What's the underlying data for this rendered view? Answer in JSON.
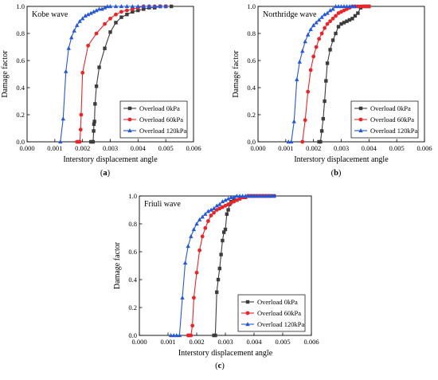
{
  "figure": {
    "panels": [
      "a",
      "b",
      "c"
    ]
  },
  "chart_data": [
    {
      "type": "line",
      "panel_label": "a",
      "title": "Kobe wave",
      "xlabel": "Interstory displacement angle",
      "ylabel": "Damage factor",
      "xlim": [
        0,
        0.006
      ],
      "ylim": [
        0,
        1.0
      ],
      "x_ticks": [
        "0.000",
        "0.001",
        "0.002",
        "0.003",
        "0.004",
        "0.005",
        "0.006"
      ],
      "y_ticks": [
        "0.0",
        "0.2",
        "0.4",
        "0.6",
        "0.8",
        "1.0"
      ],
      "legend_position": "bottom-right",
      "series": [
        {
          "name": "Overload 0kPa",
          "color": "#3c3c3c",
          "marker": "square",
          "x": [
            0.0023,
            0.00235,
            0.00238,
            0.0024,
            0.00241,
            0.00243,
            0.00245,
            0.0025,
            0.0026,
            0.0028,
            0.003,
            0.0032,
            0.0034,
            0.0036,
            0.0038,
            0.004,
            0.0042,
            0.0044,
            0.0046,
            0.0048,
            0.005,
            0.0052
          ],
          "y": [
            0.0,
            0.0,
            0.0,
            0.08,
            0.13,
            0.15,
            0.28,
            0.41,
            0.55,
            0.69,
            0.81,
            0.88,
            0.92,
            0.94,
            0.96,
            0.97,
            0.98,
            0.99,
            0.99,
            1.0,
            1.0,
            1.0
          ]
        },
        {
          "name": "Overload 60kPa",
          "color": "#e8262a",
          "marker": "circle",
          "x": [
            0.0018,
            0.00185,
            0.0019,
            0.00193,
            0.00195,
            0.002,
            0.0022,
            0.0025,
            0.0028,
            0.003,
            0.0032,
            0.0034,
            0.0036,
            0.0038,
            0.004,
            0.0042,
            0.0044,
            0.0046,
            0.0048,
            0.005
          ],
          "y": [
            0.0,
            0.0,
            0.0,
            0.09,
            0.2,
            0.51,
            0.71,
            0.8,
            0.87,
            0.91,
            0.94,
            0.96,
            0.97,
            0.98,
            0.99,
            1.0,
            1.0,
            1.0,
            1.0,
            1.0
          ]
        },
        {
          "name": "Overload 120kPa",
          "color": "#2458d6",
          "marker": "triangle",
          "x": [
            0.0012,
            0.0013,
            0.0014,
            0.0015,
            0.0016,
            0.0017,
            0.0018,
            0.0019,
            0.002,
            0.0021,
            0.0022,
            0.0023,
            0.0024,
            0.0025,
            0.0026,
            0.0027,
            0.0028,
            0.0029,
            0.003,
            0.0032,
            0.0034,
            0.0036,
            0.0038,
            0.004,
            0.0042,
            0.0044,
            0.0046,
            0.0048,
            0.005
          ],
          "y": [
            0.0,
            0.17,
            0.52,
            0.69,
            0.77,
            0.82,
            0.86,
            0.89,
            0.91,
            0.93,
            0.94,
            0.95,
            0.96,
            0.97,
            0.98,
            0.98,
            0.99,
            1.0,
            1.0,
            1.0,
            1.0,
            1.0,
            1.0,
            1.0,
            1.0,
            1.0,
            1.0,
            1.0,
            1.0
          ]
        }
      ]
    },
    {
      "type": "line",
      "panel_label": "b",
      "title": "Northridge wave",
      "xlabel": "Interstory displacement angle",
      "ylabel": "Damage factor",
      "xlim": [
        0,
        0.006
      ],
      "ylim": [
        0,
        1.0
      ],
      "x_ticks": [
        "0.000",
        "0.001",
        "0.002",
        "0.003",
        "0.004",
        "0.005",
        "0.006"
      ],
      "y_ticks": [
        "0.0",
        "0.2",
        "0.4",
        "0.6",
        "0.8",
        "1.0"
      ],
      "legend_position": "bottom-right",
      "series": [
        {
          "name": "Overload 0kPa",
          "color": "#3c3c3c",
          "marker": "square",
          "x": [
            0.0022,
            0.00225,
            0.0023,
            0.00235,
            0.0024,
            0.00245,
            0.0025,
            0.0026,
            0.0027,
            0.0028,
            0.0029,
            0.003,
            0.0031,
            0.0032,
            0.0033,
            0.0034,
            0.0035,
            0.0036,
            0.0037,
            0.0038,
            0.0039,
            0.004
          ],
          "y": [
            0.0,
            0.0,
            0.08,
            0.17,
            0.3,
            0.45,
            0.58,
            0.68,
            0.75,
            0.8,
            0.85,
            0.87,
            0.88,
            0.89,
            0.9,
            0.91,
            0.93,
            0.95,
            0.99,
            1.0,
            1.0,
            1.0
          ]
        },
        {
          "name": "Overload 60kPa",
          "color": "#e8262a",
          "marker": "circle",
          "x": [
            0.0016,
            0.0017,
            0.0018,
            0.0019,
            0.002,
            0.0021,
            0.0022,
            0.0023,
            0.0024,
            0.0025,
            0.0026,
            0.0027,
            0.0028,
            0.0029,
            0.003,
            0.0031,
            0.0032,
            0.0033,
            0.0034,
            0.0035,
            0.0036,
            0.0037,
            0.0038,
            0.0039,
            0.004
          ],
          "y": [
            0.0,
            0.16,
            0.37,
            0.53,
            0.63,
            0.7,
            0.76,
            0.8,
            0.84,
            0.87,
            0.89,
            0.91,
            0.93,
            0.95,
            0.96,
            0.97,
            0.98,
            0.99,
            1.0,
            1.0,
            1.0,
            1.0,
            1.0,
            1.0,
            1.0
          ]
        },
        {
          "name": "Overload 120kPa",
          "color": "#2458d6",
          "marker": "triangle",
          "x": [
            0.0011,
            0.0012,
            0.0013,
            0.0014,
            0.0015,
            0.0016,
            0.0017,
            0.0018,
            0.0019,
            0.002,
            0.0021,
            0.0022,
            0.0023,
            0.0024,
            0.0025,
            0.0026,
            0.0027,
            0.0028,
            0.0029,
            0.003,
            0.0031,
            0.0032,
            0.0033,
            0.0034,
            0.0035
          ],
          "y": [
            0.0,
            0.0,
            0.15,
            0.46,
            0.59,
            0.67,
            0.74,
            0.79,
            0.83,
            0.86,
            0.88,
            0.9,
            0.92,
            0.94,
            0.95,
            0.97,
            0.98,
            1.0,
            1.0,
            1.0,
            1.0,
            1.0,
            1.0,
            1.0,
            1.0
          ]
        }
      ]
    },
    {
      "type": "line",
      "panel_label": "c",
      "title": "Friuli wave",
      "xlabel": "Interstory displacement angle",
      "ylabel": "Damage factor",
      "xlim": [
        0,
        0.006
      ],
      "ylim": [
        0,
        1.0
      ],
      "x_ticks": [
        "0.000",
        "0.001",
        "0.002",
        "0.003",
        "0.004",
        "0.005",
        "0.006"
      ],
      "y_ticks": [
        "0.0",
        "0.2",
        "0.4",
        "0.6",
        "0.8",
        "1.0"
      ],
      "legend_position": "bottom-right",
      "series": [
        {
          "name": "Overload 0kPa",
          "color": "#3c3c3c",
          "marker": "square",
          "x": [
            0.0026,
            0.00265,
            0.0027,
            0.00275,
            0.0028,
            0.00285,
            0.0029,
            0.00295,
            0.003,
            0.00305,
            0.0031,
            0.00315,
            0.0032,
            0.0033,
            0.0034,
            0.0035,
            0.0036,
            0.0037,
            0.0038,
            0.0039,
            0.004,
            0.0041,
            0.0042,
            0.0043,
            0.0044,
            0.0045,
            0.0046,
            0.0047
          ],
          "y": [
            0.0,
            0.0,
            0.31,
            0.4,
            0.48,
            0.58,
            0.68,
            0.74,
            0.76,
            0.87,
            0.9,
            0.94,
            0.96,
            0.97,
            0.97,
            0.98,
            0.99,
            0.99,
            1.0,
            1.0,
            1.0,
            1.0,
            1.0,
            1.0,
            1.0,
            1.0,
            1.0,
            1.0
          ]
        },
        {
          "name": "Overload 60kPa",
          "color": "#e8262a",
          "marker": "circle",
          "x": [
            0.0017,
            0.00175,
            0.0018,
            0.00185,
            0.0019,
            0.002,
            0.0021,
            0.0022,
            0.0023,
            0.0024,
            0.0025,
            0.0026,
            0.0027,
            0.0028,
            0.0029,
            0.003,
            0.0031,
            0.0032,
            0.0033,
            0.0034,
            0.0035,
            0.0036,
            0.0037,
            0.0038,
            0.0039,
            0.004,
            0.0041,
            0.0042,
            0.0043,
            0.0044,
            0.0045,
            0.0046
          ],
          "y": [
            0.0,
            0.0,
            0.0,
            0.07,
            0.27,
            0.45,
            0.61,
            0.71,
            0.77,
            0.82,
            0.86,
            0.88,
            0.9,
            0.91,
            0.92,
            0.93,
            0.94,
            0.95,
            0.96,
            0.97,
            0.98,
            0.99,
            0.99,
            1.0,
            1.0,
            1.0,
            1.0,
            1.0,
            1.0,
            1.0,
            1.0,
            1.0
          ]
        },
        {
          "name": "Overload 120kPa",
          "color": "#2458d6",
          "marker": "triangle",
          "x": [
            0.0011,
            0.0012,
            0.0013,
            0.0014,
            0.0015,
            0.0016,
            0.0017,
            0.0018,
            0.0019,
            0.002,
            0.0021,
            0.0022,
            0.0023,
            0.0024,
            0.0025,
            0.0026,
            0.0027,
            0.0028,
            0.0029,
            0.003,
            0.0031,
            0.0032,
            0.0033,
            0.0034,
            0.0035,
            0.0036,
            0.0037,
            0.0038,
            0.0039,
            0.004,
            0.0041,
            0.0042,
            0.0043,
            0.0044,
            0.0045,
            0.0046,
            0.0047
          ],
          "y": [
            0.0,
            0.0,
            0.0,
            0.0,
            0.27,
            0.52,
            0.64,
            0.71,
            0.76,
            0.8,
            0.83,
            0.85,
            0.87,
            0.89,
            0.9,
            0.91,
            0.93,
            0.94,
            0.96,
            0.97,
            0.98,
            0.99,
            0.99,
            1.0,
            1.0,
            1.0,
            1.0,
            1.0,
            1.0,
            1.0,
            1.0,
            1.0,
            1.0,
            1.0,
            1.0,
            1.0,
            1.0
          ]
        }
      ]
    }
  ]
}
